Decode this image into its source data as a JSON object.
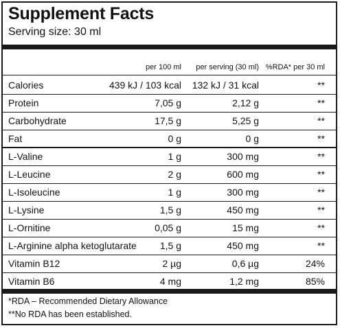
{
  "title": "Supplement Facts",
  "serving": "Serving size: 30 ml",
  "columns": {
    "per100": "per 100 ml",
    "perServing": "per serving (30 ml)",
    "rda": "%RDA* per 30 ml"
  },
  "rows": [
    {
      "name": "Calories",
      "per100": "439 kJ / 103 kcal",
      "perServing": "132 kJ / 31 kcal",
      "rda": "**"
    },
    {
      "name": "Protein",
      "per100": "7,05 g",
      "perServing": "2,12 g",
      "rda": "**"
    },
    {
      "name": "Carbohydrate",
      "per100": "17,5 g",
      "perServing": "5,25 g",
      "rda": "**"
    },
    {
      "name": "Fat",
      "per100": "0 g",
      "perServing": "0 g",
      "rda": "**"
    },
    {
      "name": "L-Valine",
      "per100": "1 g",
      "perServing": "300 mg",
      "rda": "**"
    },
    {
      "name": "L-Leucine",
      "per100": "2 g",
      "perServing": "600 mg",
      "rda": "**"
    },
    {
      "name": "L-Isoleucine",
      "per100": "1 g",
      "perServing": "300 mg",
      "rda": "**"
    },
    {
      "name": "L-Lysine",
      "per100": "1,5 g",
      "perServing": "450 mg",
      "rda": "**"
    },
    {
      "name": "L-Ornitine",
      "per100": "0,05 g",
      "perServing": "15 mg",
      "rda": "**"
    },
    {
      "name": "L-Arginine alpha ketoglutarate",
      "per100": "1,5 g",
      "perServing": "450 mg",
      "rda": "**"
    },
    {
      "name": "Vitamin B12",
      "per100": "2 µg",
      "perServing": "0,6 µg",
      "rda": "24%"
    },
    {
      "name": "Vitamin B6",
      "per100": "4 mg",
      "perServing": "1,2 mg",
      "rda": "85%"
    }
  ],
  "footnotes": [
    "*RDA – Recommended Dietary Allowance",
    "**No RDA has been established."
  ]
}
